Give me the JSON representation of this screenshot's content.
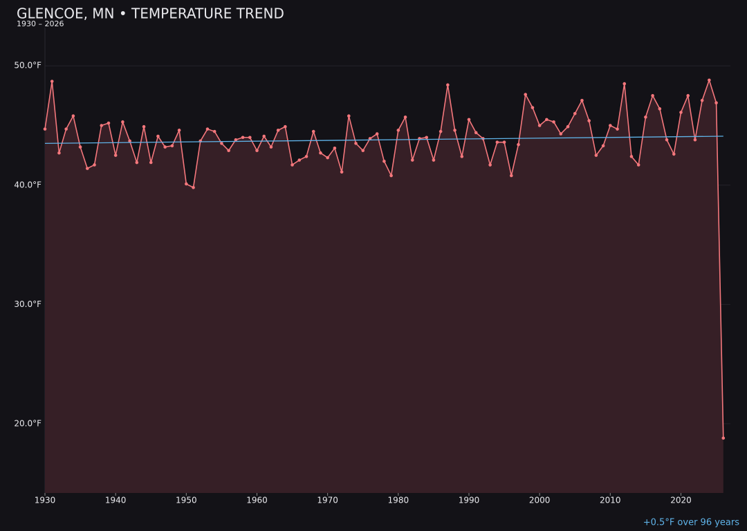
{
  "chart_data": {
    "type": "line",
    "title": "GLENCOE, MN • TEMPERATURE TREND",
    "subtitle": "1930 – 2026",
    "annotation": "+0.5°F over 96 years",
    "x": [
      1930,
      1931,
      1932,
      1933,
      1934,
      1935,
      1936,
      1937,
      1938,
      1939,
      1940,
      1941,
      1942,
      1943,
      1944,
      1945,
      1946,
      1947,
      1948,
      1949,
      1950,
      1951,
      1952,
      1953,
      1954,
      1955,
      1956,
      1957,
      1958,
      1959,
      1960,
      1961,
      1962,
      1963,
      1964,
      1965,
      1966,
      1967,
      1968,
      1969,
      1970,
      1971,
      1972,
      1973,
      1974,
      1975,
      1976,
      1977,
      1978,
      1979,
      1980,
      1981,
      1982,
      1983,
      1984,
      1985,
      1986,
      1987,
      1988,
      1989,
      1990,
      1991,
      1992,
      1993,
      1994,
      1995,
      1996,
      1997,
      1998,
      1999,
      2000,
      2001,
      2002,
      2003,
      2004,
      2005,
      2006,
      2007,
      2008,
      2009,
      2010,
      2011,
      2012,
      2013,
      2014,
      2015,
      2016,
      2017,
      2018,
      2019,
      2020,
      2021,
      2022,
      2023,
      2024,
      2025,
      2026
    ],
    "series": [
      {
        "color": "#f4777c",
        "fill": "#361f26",
        "values": [
          44.7,
          48.7,
          42.7,
          44.7,
          45.8,
          43.2,
          41.4,
          41.7,
          45.0,
          45.2,
          42.5,
          45.3,
          43.7,
          41.9,
          44.9,
          41.9,
          44.1,
          43.2,
          43.3,
          44.6,
          40.1,
          39.8,
          43.7,
          44.7,
          44.5,
          43.5,
          42.9,
          43.8,
          44.0,
          44.0,
          42.9,
          44.1,
          43.2,
          44.6,
          44.9,
          41.7,
          42.1,
          42.4,
          44.5,
          42.7,
          42.3,
          43.1,
          41.1,
          45.8,
          43.5,
          42.9,
          43.9,
          44.3,
          42.0,
          40.8,
          44.6,
          45.7,
          42.1,
          43.9,
          44.0,
          42.1,
          44.5,
          48.4,
          44.6,
          42.4,
          45.5,
          44.4,
          43.9,
          41.7,
          43.6,
          43.6,
          40.8,
          43.4,
          47.6,
          46.5,
          45.0,
          45.5,
          45.3,
          44.3,
          44.9,
          46.0,
          47.1,
          45.4,
          42.5,
          43.3,
          45.0,
          44.7,
          48.5,
          42.4,
          41.7,
          45.7,
          47.5,
          46.4,
          43.8,
          42.6,
          46.1,
          47.5,
          43.8,
          47.1,
          48.8,
          46.9,
          18.8
        ]
      }
    ],
    "trend": {
      "x": [
        1930,
        2026
      ],
      "values": [
        43.5,
        44.1
      ],
      "color": "#5fb3e8"
    },
    "xlim": [
      1930,
      2027
    ],
    "xticks": [
      1930,
      1940,
      1950,
      1960,
      1970,
      1980,
      1990,
      2000,
      2010,
      2020
    ],
    "ylim": [
      14.2,
      53.2
    ],
    "yticks": [
      {
        "value": 20,
        "label": "20.0°F"
      },
      {
        "value": 30,
        "label": "30.0°F"
      },
      {
        "value": 40,
        "label": "40.0°F"
      },
      {
        "value": 50,
        "label": "50.0°F"
      }
    ],
    "grid": true
  }
}
